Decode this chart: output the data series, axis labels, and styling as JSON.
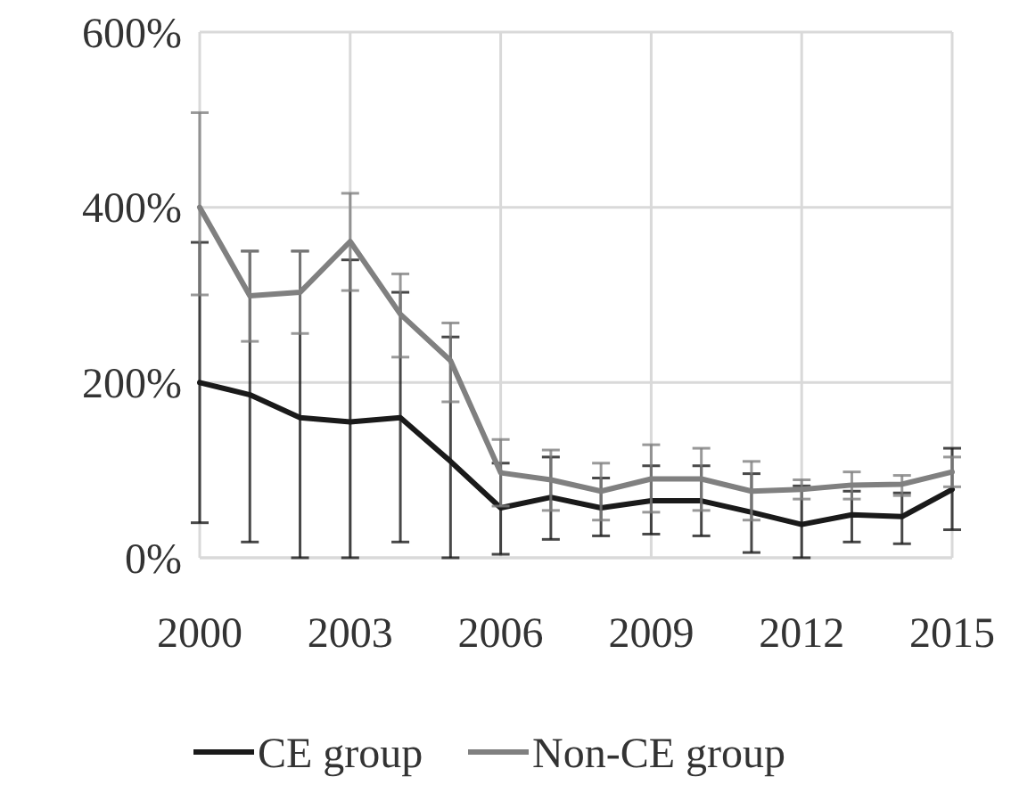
{
  "chart_data": {
    "type": "line",
    "x": [
      2000,
      2001,
      2002,
      2003,
      2004,
      2005,
      2006,
      2007,
      2008,
      2009,
      2010,
      2011,
      2012,
      2013,
      2014,
      2015
    ],
    "series": [
      {
        "name": "CE group",
        "color": "#1a1a1a",
        "values": [
          200,
          186,
          160,
          155,
          160,
          110,
          57,
          69,
          57,
          65,
          65,
          52,
          38,
          49,
          47,
          78
        ],
        "errors": [
          [
            40,
            360
          ],
          [
            18,
            350
          ],
          [
            0,
            350
          ],
          [
            0,
            340
          ],
          [
            18,
            303
          ],
          [
            0,
            252
          ],
          [
            4,
            108
          ],
          [
            21,
            115
          ],
          [
            25,
            91
          ],
          [
            27,
            105
          ],
          [
            25,
            105
          ],
          [
            6,
            96
          ],
          [
            0,
            82
          ],
          [
            18,
            76
          ],
          [
            16,
            74
          ],
          [
            32,
            125
          ]
        ]
      },
      {
        "name": "Non-CE group",
        "color": "#808080",
        "values": [
          400,
          299,
          303,
          361,
          278,
          225,
          97,
          89,
          76,
          90,
          90,
          76,
          78,
          83,
          84,
          98
        ],
        "errors": [
          [
            300,
            508
          ],
          [
            247,
            350
          ],
          [
            256,
            350
          ],
          [
            305,
            416
          ],
          [
            229,
            324
          ],
          [
            178,
            268
          ],
          [
            59,
            135
          ],
          [
            54,
            123
          ],
          [
            43,
            108
          ],
          [
            52,
            129
          ],
          [
            54,
            125
          ],
          [
            43,
            110
          ],
          [
            67,
            89
          ],
          [
            67,
            98
          ],
          [
            71,
            94
          ],
          [
            81,
            115
          ]
        ]
      }
    ],
    "xlim": [
      2000,
      2015
    ],
    "xticks": [
      2000,
      2003,
      2006,
      2009,
      2012,
      2015
    ],
    "ylim": [
      0,
      600
    ],
    "yticks": [
      {
        "value": 0,
        "label": "0%"
      },
      {
        "value": 200,
        "label": "200%"
      },
      {
        "value": 400,
        "label": "400%"
      },
      {
        "value": 600,
        "label": "600%"
      }
    ],
    "grid": true,
    "legend": "bottom",
    "line_style": "solid"
  }
}
